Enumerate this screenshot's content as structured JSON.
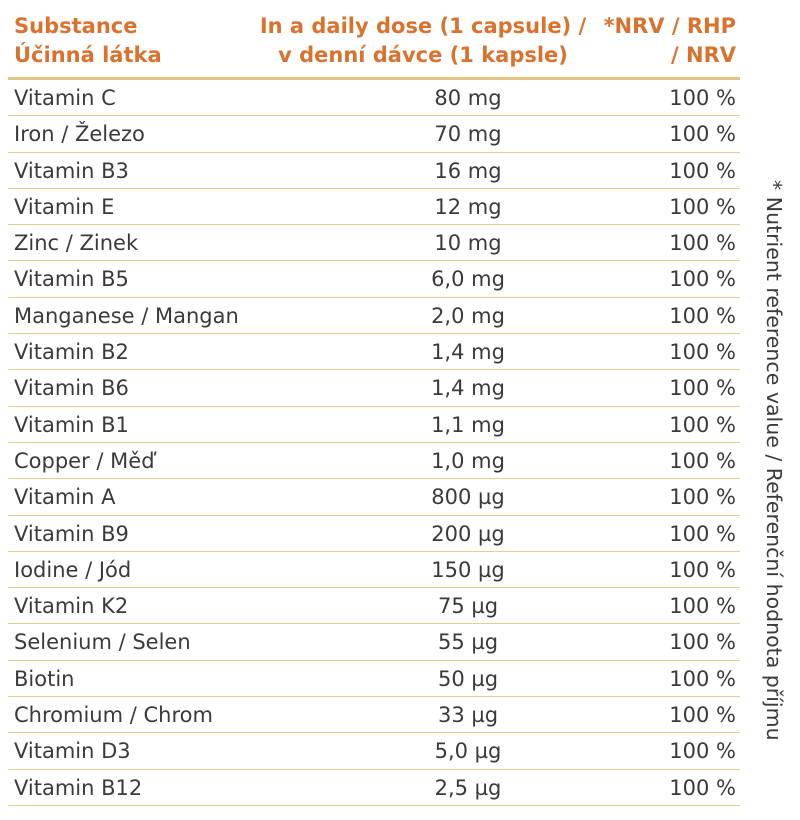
{
  "table": {
    "headers": {
      "substance": [
        "Substance",
        "Účinná látka"
      ],
      "dose": [
        "In a daily dose (1 capsule) /",
        "v denní dávce (1 kapsle)"
      ],
      "nrv": [
        "*NRV / RHP",
        "/ NRV"
      ]
    },
    "rows": [
      {
        "name": "Vitamin C",
        "dose": "80 mg",
        "nrv": "100 %"
      },
      {
        "name": "Iron / Železo",
        "dose": "70 mg",
        "nrv": "100 %"
      },
      {
        "name": "Vitamin B3",
        "dose": "16 mg",
        "nrv": "100 %"
      },
      {
        "name": "Vitamin E",
        "dose": "12 mg",
        "nrv": "100 %"
      },
      {
        "name": "Zinc / Zinek",
        "dose": "10 mg",
        "nrv": "100 %"
      },
      {
        "name": "Vitamin B5",
        "dose": "6,0 mg",
        "nrv": "100 %"
      },
      {
        "name": "Manganese / Mangan",
        "dose": "2,0 mg",
        "nrv": "100 %"
      },
      {
        "name": "Vitamin B2",
        "dose": "1,4 mg",
        "nrv": "100 %"
      },
      {
        "name": "Vitamin B6",
        "dose": "1,4 mg",
        "nrv": "100 %"
      },
      {
        "name": "Vitamin B1",
        "dose": "1,1 mg",
        "nrv": "100 %"
      },
      {
        "name": "Copper / Měď",
        "dose": "1,0 mg",
        "nrv": "100 %"
      },
      {
        "name": "Vitamin A",
        "dose": "800 µg",
        "nrv": "100 %"
      },
      {
        "name": "Vitamin B9",
        "dose": "200 µg",
        "nrv": "100 %"
      },
      {
        "name": "Iodine / Jód",
        "dose": "150 µg",
        "nrv": "100 %"
      },
      {
        "name": "Vitamin K2",
        "dose": "75 µg",
        "nrv": "100 %"
      },
      {
        "name": "Selenium / Selen",
        "dose": "55 µg",
        "nrv": "100 %"
      },
      {
        "name": "Biotin",
        "dose": "50 µg",
        "nrv": "100 %"
      },
      {
        "name": "Chromium / Chrom",
        "dose": "33 µg",
        "nrv": "100 %"
      },
      {
        "name": "Vitamin D3",
        "dose": "5,0 µg",
        "nrv": "100 %"
      },
      {
        "name": "Vitamin B12",
        "dose": "2,5 µg",
        "nrv": "100 %"
      }
    ]
  },
  "footnote": "* Nutrient reference value / Referenční hodnota příjmu",
  "colors": {
    "header_text": "#d9722e",
    "rule": "#e2c388",
    "body_text": "#3a3a3a"
  }
}
